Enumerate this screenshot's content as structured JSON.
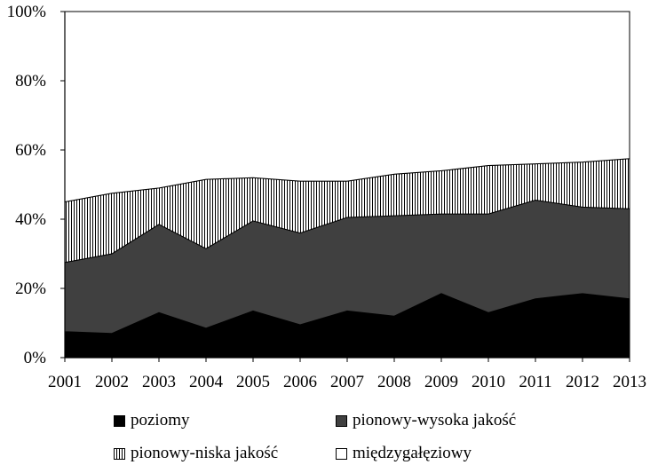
{
  "chart_data": {
    "type": "area",
    "stacked": true,
    "x": [
      "2001",
      "2002",
      "2003",
      "2004",
      "2005",
      "2006",
      "2007",
      "2008",
      "2009",
      "2010",
      "2011",
      "2012",
      "2013"
    ],
    "series": [
      {
        "name": "poziomy",
        "color": "#000000",
        "pattern": "solid",
        "values": [
          7.5,
          7,
          13,
          8.5,
          13.5,
          9.5,
          13.5,
          12,
          18.5,
          13,
          17,
          18.5,
          17
        ]
      },
      {
        "name": "pionowy-wysoka jakość",
        "color": "#404040",
        "pattern": "solid",
        "values": [
          20,
          23,
          25.5,
          23,
          26,
          26.5,
          27,
          29,
          23,
          28.5,
          28.5,
          25,
          26
        ]
      },
      {
        "name": "pionowy-niska jakość",
        "color": "#000000",
        "pattern": "vertical-hatch",
        "values": [
          17.5,
          17.5,
          10.5,
          20,
          12.5,
          15,
          10.5,
          12,
          12.5,
          14,
          10.5,
          13,
          14.5
        ]
      },
      {
        "name": "międzygałęziowy",
        "color": "#ffffff",
        "pattern": "solid",
        "values": [
          55,
          52.5,
          51,
          48.5,
          48,
          49,
          49,
          47,
          46,
          44.5,
          44,
          43.5,
          42.5
        ]
      }
    ],
    "yticks": [
      "0%",
      "20%",
      "40%",
      "60%",
      "80%",
      "100%"
    ],
    "ylim": [
      0,
      100
    ],
    "title": "",
    "xlabel": "",
    "ylabel": "",
    "grid": false,
    "legend_position": "bottom"
  }
}
